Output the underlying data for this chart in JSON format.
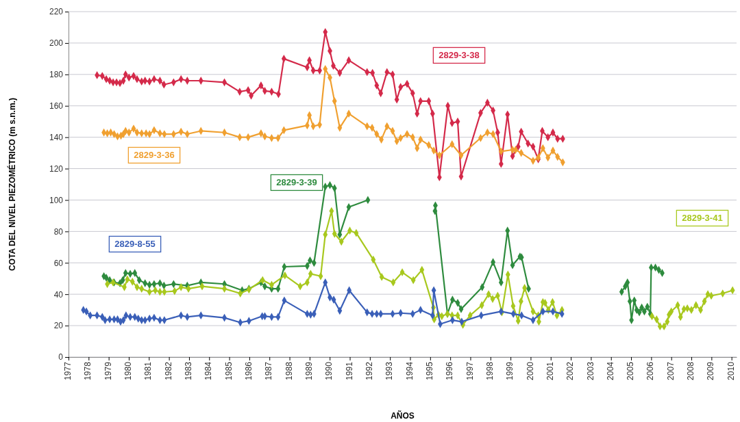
{
  "chart_data": {
    "type": "line",
    "xlabel": "AÑOS",
    "ylabel": "COTA DEL NIVEL PIEZOMÉTRICO (m s.n.m.)",
    "xlim": [
      1977,
      2010.25
    ],
    "xticks": [
      1977,
      1978,
      1979,
      1980,
      1981,
      1982,
      1983,
      1984,
      1985,
      1986,
      1987,
      1988,
      1989,
      1990,
      1991,
      1992,
      1993,
      1994,
      1995,
      1996,
      1997,
      1998,
      1999,
      2000,
      2001,
      2002,
      2003,
      2004,
      2005,
      2006,
      2007,
      2008,
      2009,
      2010
    ],
    "ylim": [
      0,
      220
    ],
    "yticks": [
      0,
      20,
      40,
      60,
      80,
      100,
      120,
      140,
      160,
      180,
      200,
      220
    ],
    "grid": "y",
    "marker": "diamond",
    "line_style": "solid",
    "series": [
      {
        "name": "2829-3-38",
        "color": "#d42a4a",
        "x": [
          1978.42,
          1978.68,
          1978.88,
          1979.05,
          1979.22,
          1979.39,
          1979.56,
          1979.73,
          1979.84,
          1980.01,
          1980.24,
          1980.41,
          1980.64,
          1980.81,
          1981.03,
          1981.26,
          1981.55,
          1981.75,
          1982.23,
          1982.6,
          1982.91,
          1983.59,
          1984.76,
          1985.52,
          1985.94,
          1986.09,
          1986.58,
          1986.77,
          1987.11,
          1987.45,
          1987.72,
          1988.88,
          1988.99,
          1989.18,
          1989.5,
          1989.78,
          1990.01,
          1990.18,
          1990.5,
          1990.95,
          1991.86,
          1992.13,
          1992.34,
          1992.54,
          1992.85,
          1993.13,
          1993.34,
          1993.53,
          1993.85,
          1994.13,
          1994.35,
          1994.52,
          1994.93,
          1995.12,
          1995.46,
          1995.88,
          1996.09,
          1996.37,
          1996.54,
          1997.51,
          1997.85,
          1998.13,
          1998.36,
          1998.53,
          1998.85,
          1999.1,
          1999.38,
          1999.53,
          1999.87,
          2000.12,
          2000.38,
          2000.58,
          2000.86,
          2001.11,
          2001.34,
          2001.6
        ],
        "values": [
          179.5,
          179,
          177,
          176,
          175,
          175,
          174.5,
          176,
          180,
          178,
          179,
          177,
          175.5,
          176,
          175.5,
          177,
          176,
          173.5,
          175,
          177,
          176,
          176,
          175,
          169,
          170,
          166.5,
          173,
          169.5,
          169,
          167.5,
          190,
          184.5,
          189,
          182.5,
          182.5,
          207,
          195,
          185.5,
          181,
          189,
          181.5,
          181,
          173,
          168,
          181.5,
          180,
          164,
          172,
          174,
          168,
          155,
          163,
          163,
          155,
          114.5,
          160,
          149,
          150,
          115,
          155.5,
          162,
          157,
          143,
          123,
          154.5,
          128,
          134,
          143.5,
          136,
          134,
          126,
          144,
          140,
          143,
          139,
          139
        ]
      },
      {
        "name": "2829-3-36",
        "color": "#f0a030",
        "x": [
          1978.76,
          1978.93,
          1979.1,
          1979.27,
          1979.44,
          1979.61,
          1979.73,
          1979.84,
          1980.01,
          1980.24,
          1980.41,
          1980.64,
          1980.86,
          1981.03,
          1981.26,
          1981.55,
          1981.77,
          1982.23,
          1982.6,
          1982.91,
          1983.59,
          1984.76,
          1985.52,
          1985.94,
          1986.58,
          1986.77,
          1987.11,
          1987.43,
          1987.72,
          1988.88,
          1988.99,
          1989.18,
          1989.5,
          1989.78,
          1990.01,
          1990.24,
          1990.5,
          1990.95,
          1991.86,
          1992.11,
          1992.34,
          1992.57,
          1992.85,
          1993.13,
          1993.34,
          1993.53,
          1993.85,
          1994.13,
          1994.35,
          1994.52,
          1994.93,
          1995.18,
          1995.46,
          1996.09,
          1996.54,
          1997.51,
          1997.85,
          1998.13,
          1998.53,
          1999.1,
          1999.25,
          1999.53,
          2000.12,
          2000.38,
          2000.61,
          2000.86,
          2001.11,
          2001.34,
          2001.6
        ],
        "values": [
          143,
          142.5,
          143,
          142,
          140.5,
          141,
          142,
          144,
          143,
          145.5,
          143,
          142.5,
          142.5,
          142,
          144.5,
          142.5,
          142,
          142,
          143.5,
          142,
          144,
          143,
          140,
          140,
          142.5,
          140.5,
          139.5,
          139.5,
          144.5,
          147.5,
          154,
          147,
          148,
          183.5,
          178,
          163,
          146,
          155,
          147,
          146,
          142,
          138.5,
          147,
          144,
          137.5,
          139.5,
          142,
          140,
          133,
          138.5,
          135,
          131.5,
          128.5,
          135.5,
          128.5,
          139.5,
          143,
          142,
          131,
          132,
          132,
          130,
          125,
          127,
          133,
          127,
          131.5,
          127.5,
          124
        ]
      },
      {
        "name": "2829-3-39",
        "color": "#2e8b3e",
        "x": [
          1978.76,
          1978.88,
          1979.05,
          1979.27,
          1979.56,
          1979.7,
          1979.84,
          1980.07,
          1980.3,
          1980.52,
          1980.81,
          1981.03,
          1981.26,
          1981.55,
          1981.75,
          1982.23,
          1982.91,
          1983.59,
          1984.76,
          1985.64,
          1985.98,
          1986.58,
          1986.77,
          1987.11,
          1987.43,
          1987.74,
          1988.88,
          1989.02,
          1989.22,
          1989.78,
          1990.01,
          1990.24,
          1990.5,
          1990.95,
          1991.9,
          1993,
          1995.24,
          1995.26,
          1995.86,
          1996.11,
          1996.37,
          1996.54,
          1997.59,
          1998.13,
          1998.53,
          1998.85,
          1999.1,
          1999.47,
          1999.55,
          1999.9,
          2002,
          2004.53,
          2004.71,
          2004.82,
          2004.94,
          2005.02,
          2005.16,
          2005.28,
          2005.41,
          2005.53,
          2005.66,
          2005.81,
          2005.96,
          2006,
          2006.21,
          2006.38,
          2006.55
        ],
        "values": [
          51.5,
          50.5,
          49,
          47.5,
          47,
          49,
          53.5,
          53,
          53.5,
          49,
          47,
          46,
          46.5,
          47,
          45.5,
          46.5,
          45.5,
          47.5,
          46.5,
          42.5,
          43.5,
          47.5,
          45,
          43.5,
          43.5,
          57.5,
          58,
          61.5,
          60,
          108.5,
          109.5,
          107.5,
          78,
          95.5,
          100,
          null,
          93,
          96.5,
          27.5,
          36.5,
          34.5,
          30.5,
          44.5,
          60.5,
          47.5,
          80.5,
          58.5,
          64,
          63.5,
          43.5,
          null,
          41.5,
          45,
          47.5,
          35.5,
          23.5,
          36,
          30,
          28.5,
          31.5,
          29,
          32,
          27.5,
          57,
          57,
          55.5,
          53.5
        ]
      },
      {
        "name": "2829-3-41",
        "color": "#a8c81e",
        "x": [
          1978.93,
          1979.22,
          1979.78,
          1979.93,
          1980.18,
          1980.41,
          1980.64,
          1981.03,
          1981.32,
          1981.55,
          1981.77,
          1982.28,
          1982.6,
          1982.97,
          1983.65,
          1984.76,
          1985.55,
          1985.98,
          1986.66,
          1987.11,
          1987.77,
          1988.53,
          1988.88,
          1989.05,
          1989.55,
          1989.78,
          1990.09,
          1990.24,
          1990.58,
          1991,
          1991.32,
          1992.17,
          1992.59,
          1993.16,
          1993.61,
          1994.16,
          1994.59,
          1995.16,
          1995.2,
          1995.41,
          1995.58,
          1995.86,
          1996.09,
          1996.37,
          1996.63,
          1996.99,
          1997.57,
          1997.91,
          1998.11,
          1998.36,
          1998.57,
          1998.87,
          1999.13,
          1999.38,
          1999.52,
          1999.7,
          2000.12,
          2000.38,
          2000.41,
          2000.61,
          2000.72,
          2000.88,
          2001.09,
          2001.31,
          2001.56,
          2003,
          2006.04,
          2006.27,
          2006.44,
          2006.64,
          2006.8,
          2006.89,
          2007,
          2007.32,
          2007.46,
          2007.63,
          2007.8,
          2008,
          2008.23,
          2008.46,
          2008.65,
          2008.82,
          2008.99,
          2009.56,
          2010.05
        ],
        "values": [
          46.5,
          47.5,
          44.5,
          49.5,
          48,
          44.5,
          43.5,
          41.5,
          42.5,
          41.5,
          41.5,
          42,
          44.5,
          43.5,
          45,
          43.5,
          40.5,
          43,
          49,
          46,
          52,
          45,
          47.5,
          53,
          51.5,
          78,
          93,
          78.5,
          73.5,
          80.5,
          79,
          62,
          51,
          47.5,
          54,
          49,
          55.5,
          31.5,
          24,
          27,
          26,
          27.5,
          26.5,
          26.5,
          20.5,
          26.5,
          33,
          40,
          37,
          39,
          28.5,
          52.5,
          32.5,
          23,
          35.5,
          44,
          29,
          26.5,
          22.5,
          35,
          34.5,
          30,
          35,
          26.5,
          30,
          null,
          26,
          24,
          19.5,
          19.5,
          22.5,
          27,
          29,
          33,
          25.5,
          30.5,
          31,
          30,
          33,
          30,
          35.5,
          40,
          39,
          40.5,
          42.5
        ]
      },
      {
        "name": "2829-8-55",
        "color": "#3a5fb8",
        "x": [
          1977.74,
          1977.89,
          1978.08,
          1978.42,
          1978.68,
          1978.82,
          1979.05,
          1979.27,
          1979.44,
          1979.59,
          1979.73,
          1979.86,
          1980.07,
          1980.3,
          1980.47,
          1980.64,
          1980.81,
          1981.03,
          1981.26,
          1981.55,
          1981.77,
          1982.6,
          1982.91,
          1983.59,
          1984.76,
          1985.55,
          1985.98,
          1986.64,
          1986.77,
          1987.11,
          1987.43,
          1987.74,
          1988.88,
          1989.05,
          1989.22,
          1989.78,
          1990.01,
          1990.2,
          1990.5,
          1990.97,
          1991.86,
          1992.11,
          1992.34,
          1992.54,
          1993.13,
          1993.53,
          1994.13,
          1994.52,
          1995.12,
          1995.18,
          1995.5,
          1996.11,
          1996.57,
          1997.54,
          1998.53,
          1999.14,
          1999.55,
          2000.12,
          2000.61,
          2001.11,
          2001.56
        ],
        "values": [
          30,
          29,
          26.5,
          26.5,
          25.5,
          23.5,
          24,
          24,
          24,
          22.5,
          23.5,
          26.5,
          25.5,
          25.5,
          24.5,
          23.5,
          23.5,
          24.5,
          25,
          23.5,
          23.5,
          26.5,
          25.5,
          26.5,
          25,
          22,
          23,
          26,
          26,
          25.5,
          25.5,
          36,
          27.5,
          27,
          27.5,
          47.5,
          38,
          36.5,
          29.5,
          42.5,
          28.5,
          27.5,
          27.5,
          27.5,
          27.5,
          28,
          27.5,
          30,
          26.5,
          42.5,
          21,
          23.5,
          22.5,
          26.5,
          29,
          27.5,
          26.5,
          23.5,
          29,
          29,
          27.5
        ]
      }
    ]
  }
}
